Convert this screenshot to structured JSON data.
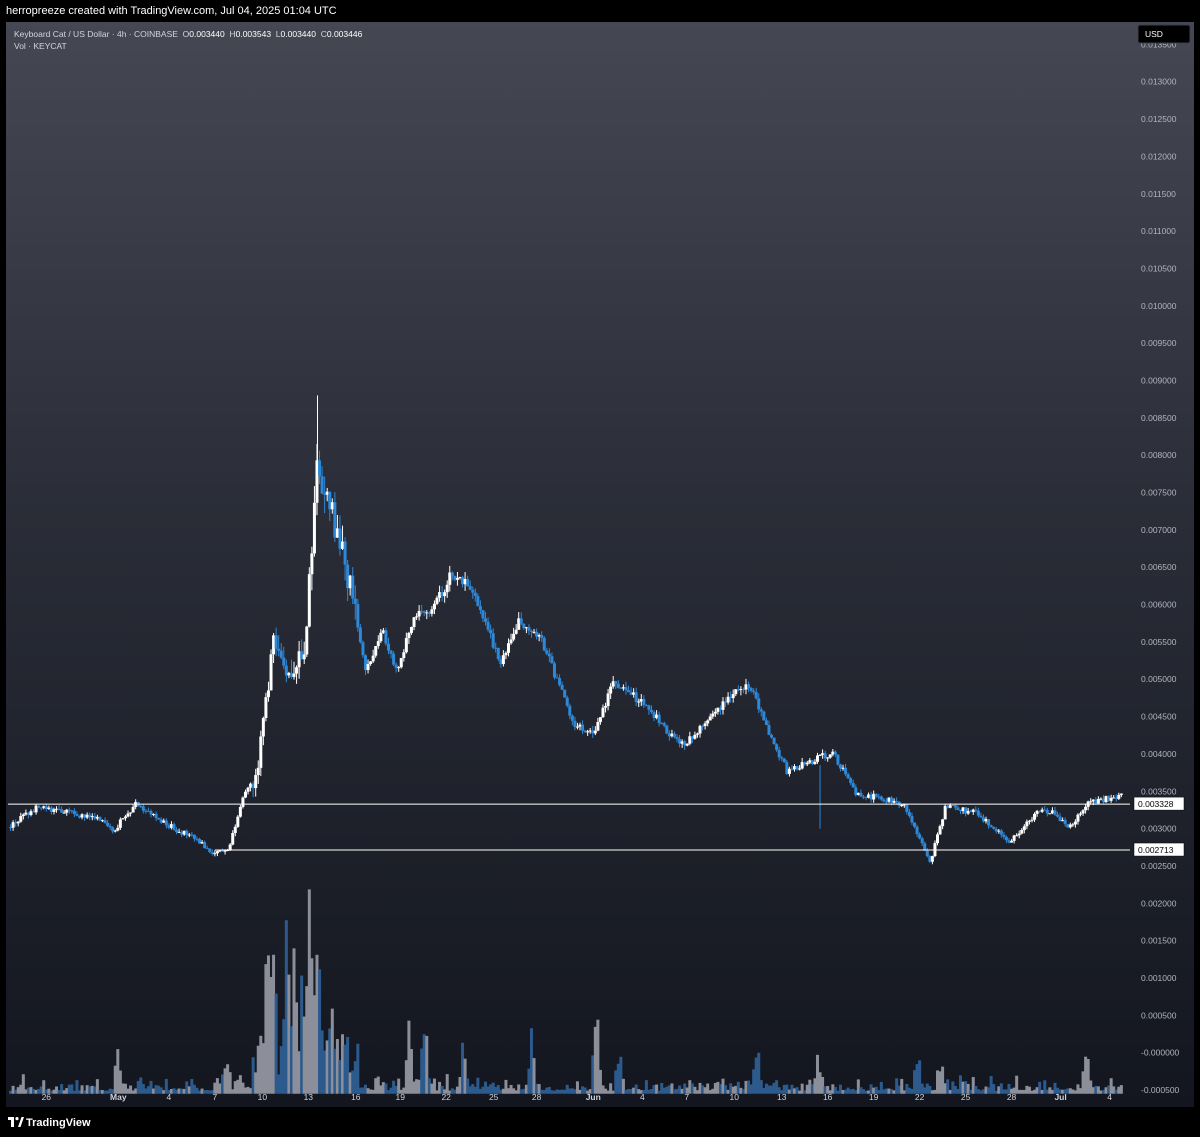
{
  "header": {
    "text": "herropreeze created with TradingView.com, Jul 04, 2025 01:04 UTC"
  },
  "legend": {
    "symbol": "Keyboard Cat / US Dollar · 4h · COINBASE",
    "o_label": "O",
    "o": "0.003440",
    "h_label": "H",
    "h": "0.003543",
    "l_label": "L",
    "l": "0.003440",
    "c_label": "C",
    "c": "0.003446",
    "vol": "Vol · KEYCAT"
  },
  "footer": {
    "brand": "TradingView",
    "logo": "tradingview-logo-icon"
  },
  "colors": {
    "up": "#ffffff",
    "down": "#2e88d8",
    "vol_up": "#8c8f99",
    "vol_down": "#2c5a8c",
    "line": "#ffffff"
  },
  "chart_data": {
    "type": "candlestick",
    "currency_label": "USD",
    "y_ticks": [
      "0.013500",
      "0.013000",
      "0.012500",
      "0.012000",
      "0.011500",
      "0.011000",
      "0.010500",
      "0.010000",
      "0.009500",
      "0.009000",
      "0.008500",
      "0.008000",
      "0.007500",
      "0.007000",
      "0.006500",
      "0.006000",
      "0.005500",
      "0.005000",
      "0.004500",
      "0.004000",
      "0.003500",
      "0.003000",
      "0.002500",
      "0.002000",
      "0.001500",
      "0.001000",
      "0.000500",
      "-0.000000",
      "-0.000500"
    ],
    "ylim": [
      -0.0005,
      0.0138
    ],
    "x_ticks": [
      "26",
      "May",
      "4",
      "7",
      "10",
      "13",
      "16",
      "19",
      "22",
      "25",
      "28",
      "Jun",
      "4",
      "7",
      "10",
      "13",
      "16",
      "19",
      "22",
      "25",
      "28",
      "Jul",
      "4"
    ],
    "x_tick_bold": [
      false,
      true,
      false,
      false,
      false,
      false,
      false,
      false,
      false,
      false,
      false,
      true,
      false,
      false,
      false,
      false,
      false,
      false,
      false,
      false,
      false,
      true,
      false
    ],
    "x_tick_days": [
      -4.4,
      0.3,
      3.6,
      6.6,
      9.7,
      12.7,
      15.8,
      18.7,
      21.7,
      24.8,
      27.6,
      31.3,
      34.5,
      37.4,
      40.5,
      43.6,
      46.6,
      49.6,
      52.6,
      55.6,
      58.6,
      61.8,
      65.0
    ],
    "x_range": [
      -6.9,
      66.2
    ],
    "horizontal_lines": [
      {
        "value": 0.003328,
        "label": "0.003328",
        "from_day": -6.9
      },
      {
        "value": 0.002713,
        "label": "0.002713",
        "from_day": 6.6
      }
    ],
    "price_path": [
      [
        -6.9,
        0.00302
      ],
      [
        -5,
        0.00328
      ],
      [
        -3,
        0.00322
      ],
      [
        -1,
        0.00312
      ],
      [
        0,
        0.00298
      ],
      [
        1.5,
        0.00335
      ],
      [
        3,
        0.0031
      ],
      [
        5,
        0.0029
      ],
      [
        6.5,
        0.00268
      ],
      [
        7.5,
        0.00272
      ],
      [
        8.3,
        0.00335
      ],
      [
        9.3,
        0.0037
      ],
      [
        10.5,
        0.00555
      ],
      [
        11.5,
        0.0051
      ],
      [
        12.5,
        0.00545
      ],
      [
        13.3,
        0.00795
      ],
      [
        14.5,
        0.007
      ],
      [
        15.5,
        0.0062
      ],
      [
        16.5,
        0.0051
      ],
      [
        17.5,
        0.0057
      ],
      [
        18.5,
        0.0051
      ],
      [
        19.5,
        0.0058
      ],
      [
        21,
        0.006
      ],
      [
        22,
        0.0064
      ],
      [
        23.3,
        0.00625
      ],
      [
        25.3,
        0.0052
      ],
      [
        26.5,
        0.0058
      ],
      [
        28,
        0.0055
      ],
      [
        30,
        0.0044
      ],
      [
        31.4,
        0.00425
      ],
      [
        32.5,
        0.00495
      ],
      [
        34.5,
        0.0047
      ],
      [
        37,
        0.0041
      ],
      [
        38.5,
        0.0044
      ],
      [
        40.5,
        0.00485
      ],
      [
        41.5,
        0.00495
      ],
      [
        42.5,
        0.0044
      ],
      [
        44,
        0.00375
      ],
      [
        46,
        0.00395
      ],
      [
        47,
        0.004
      ],
      [
        48.5,
        0.00345
      ],
      [
        50,
        0.00342
      ],
      [
        51.5,
        0.00333
      ],
      [
        53.3,
        0.00255
      ],
      [
        54.3,
        0.0033
      ],
      [
        56.4,
        0.0032
      ],
      [
        58.5,
        0.00282
      ],
      [
        60.5,
        0.00325
      ],
      [
        61.4,
        0.0032
      ],
      [
        62.3,
        0.003
      ],
      [
        63.7,
        0.00335
      ],
      [
        65.8,
        0.00345
      ]
    ],
    "volume_spikes": [
      [
        10,
        0.0021
      ],
      [
        10.4,
        0.00175
      ],
      [
        11.3,
        0.00265
      ],
      [
        11.8,
        0.002
      ],
      [
        12.8,
        0.0031
      ],
      [
        13.3,
        0.0022
      ],
      [
        12.3,
        0.0012
      ],
      [
        14.2,
        0.0009
      ],
      [
        15.2,
        0.0007
      ],
      [
        19.3,
        0.00115
      ],
      [
        20.3,
        0.0011
      ],
      [
        27.3,
        0.00085
      ],
      [
        31.5,
        0.00145
      ],
      [
        22.8,
        0.0007
      ],
      [
        33,
        0.0006
      ],
      [
        42,
        0.00045
      ],
      [
        46,
        0.0005
      ],
      [
        52.5,
        0.0005
      ],
      [
        54,
        0.00045
      ],
      [
        63.5,
        0.0005
      ],
      [
        0.3,
        0.00065
      ],
      [
        7.3,
        0.00045
      ]
    ]
  }
}
